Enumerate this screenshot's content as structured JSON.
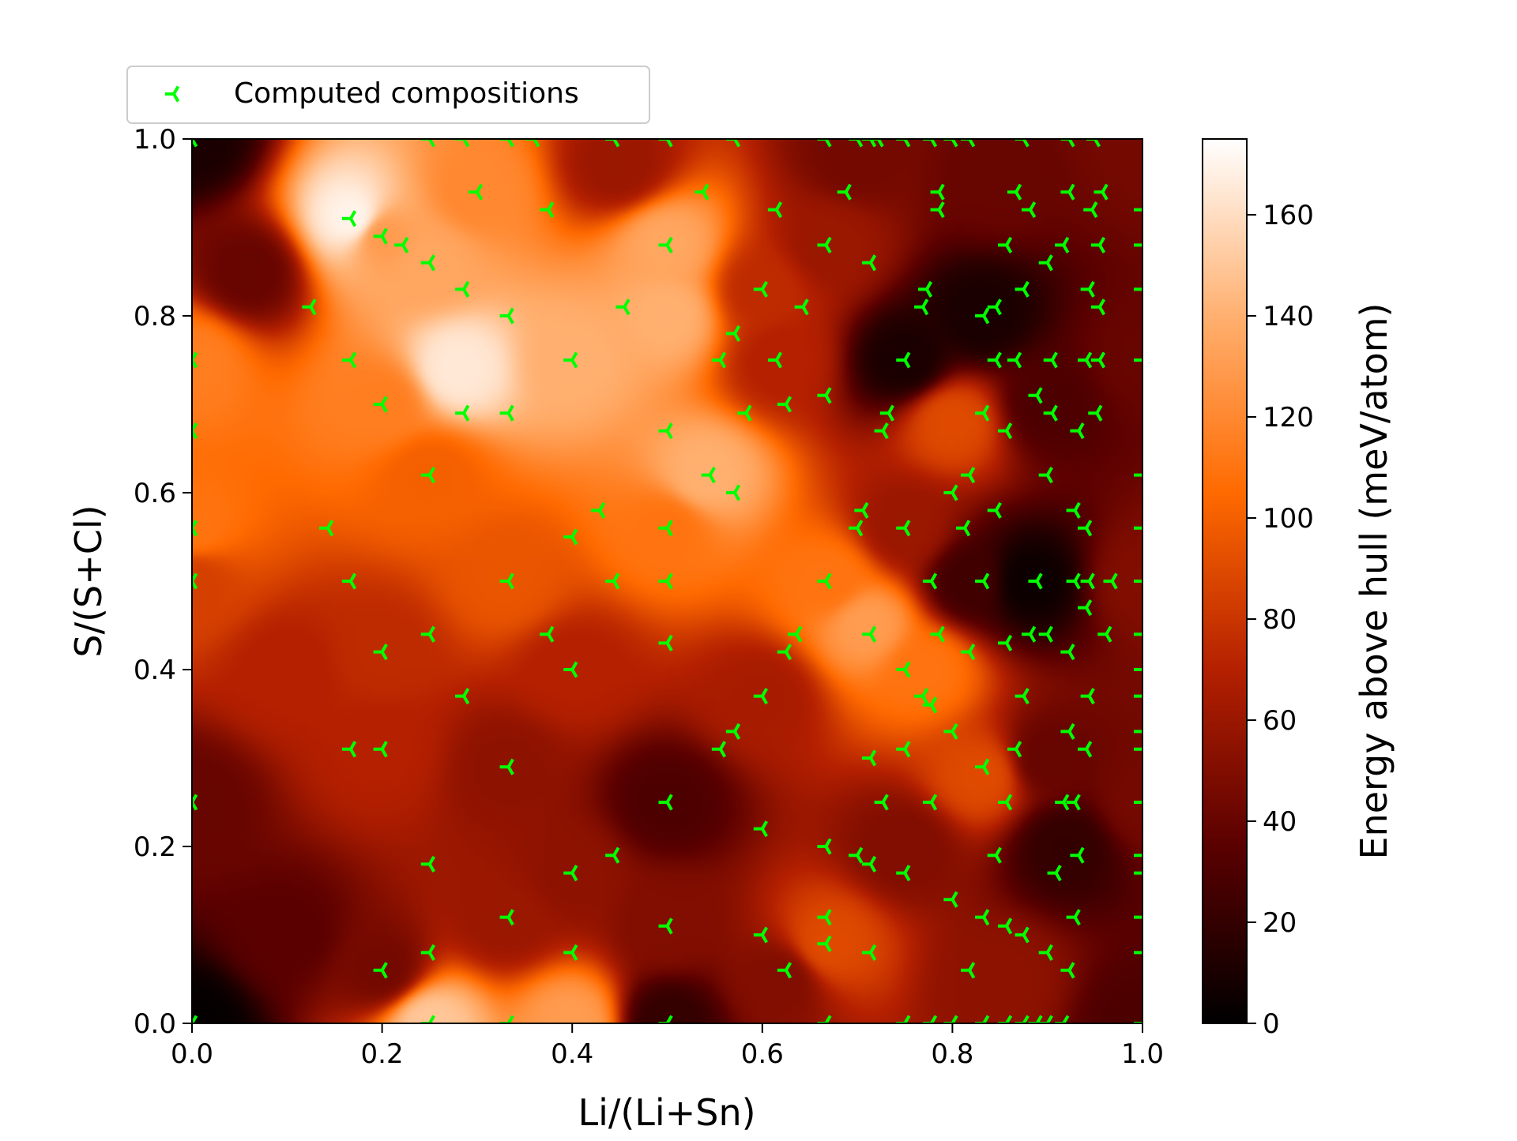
{
  "chart_data": {
    "type": "heatmap",
    "xlabel": "Li/(Li+Sn)",
    "ylabel": "S/(S+Cl)",
    "xlim": [
      0.0,
      1.0
    ],
    "ylim": [
      0.0,
      1.0
    ],
    "x_ticks": [
      "0.0",
      "0.2",
      "0.4",
      "0.6",
      "0.8",
      "1.0"
    ],
    "y_ticks": [
      "0.0",
      "0.2",
      "0.4",
      "0.6",
      "0.8",
      "1.0"
    ],
    "grid": false,
    "legend": {
      "placement": "top-left-above",
      "entries": [
        "Computed compositions"
      ]
    },
    "colorbar": {
      "label": "Energy above hull (meV/atom)",
      "range": [
        0,
        175
      ],
      "ticks": [
        "0",
        "20",
        "40",
        "60",
        "80",
        "100",
        "120",
        "140",
        "160"
      ],
      "colormap": "gist_heat",
      "colors": [
        "#000000",
        "#5a0000",
        "#b42000",
        "#ff6a00",
        "#ffb070",
        "#ffffff"
      ]
    },
    "marker_color": "#00ff00",
    "surface": [
      {
        "x": 0.0,
        "y": 0.0,
        "e": 2
      },
      {
        "x": 0.0,
        "y": 0.25,
        "e": 40
      },
      {
        "x": 0.0,
        "y": 0.5,
        "e": 85
      },
      {
        "x": 0.0,
        "y": 0.56,
        "e": 110
      },
      {
        "x": 0.0,
        "y": 0.75,
        "e": 115
      },
      {
        "x": 0.0,
        "y": 1.0,
        "e": 10
      },
      {
        "x": 0.06,
        "y": 0.85,
        "e": 40
      },
      {
        "x": 0.1,
        "y": 0.4,
        "e": 70
      },
      {
        "x": 0.1,
        "y": 0.1,
        "e": 35
      },
      {
        "x": 0.17,
        "y": 0.91,
        "e": 170
      },
      {
        "x": 0.2,
        "y": 0.89,
        "e": 130
      },
      {
        "x": 0.2,
        "y": 0.7,
        "e": 115
      },
      {
        "x": 0.2,
        "y": 0.42,
        "e": 75
      },
      {
        "x": 0.2,
        "y": 0.31,
        "e": 70
      },
      {
        "x": 0.2,
        "y": 0.06,
        "e": 45
      },
      {
        "x": 0.25,
        "y": 0.0,
        "e": 150
      },
      {
        "x": 0.25,
        "y": 0.62,
        "e": 100
      },
      {
        "x": 0.25,
        "y": 0.86,
        "e": 135
      },
      {
        "x": 0.28,
        "y": 0.74,
        "e": 165
      },
      {
        "x": 0.3,
        "y": 0.94,
        "e": 120
      },
      {
        "x": 0.33,
        "y": 0.5,
        "e": 95
      },
      {
        "x": 0.33,
        "y": 0.29,
        "e": 55
      },
      {
        "x": 0.33,
        "y": 0.12,
        "e": 60
      },
      {
        "x": 0.4,
        "y": 0.0,
        "e": 130
      },
      {
        "x": 0.4,
        "y": 0.75,
        "e": 140
      },
      {
        "x": 0.4,
        "y": 0.4,
        "e": 70
      },
      {
        "x": 0.4,
        "y": 0.17,
        "e": 55
      },
      {
        "x": 0.45,
        "y": 0.97,
        "e": 60
      },
      {
        "x": 0.5,
        "y": 0.88,
        "e": 135
      },
      {
        "x": 0.5,
        "y": 0.8,
        "e": 140
      },
      {
        "x": 0.5,
        "y": 0.56,
        "e": 110
      },
      {
        "x": 0.5,
        "y": 0.25,
        "e": 30
      },
      {
        "x": 0.5,
        "y": 0.11,
        "e": 50
      },
      {
        "x": 0.5,
        "y": 0.0,
        "e": 20
      },
      {
        "x": 0.54,
        "y": 0.62,
        "e": 140
      },
      {
        "x": 0.6,
        "y": 0.83,
        "e": 75
      },
      {
        "x": 0.6,
        "y": 0.37,
        "e": 65
      },
      {
        "x": 0.62,
        "y": 0.75,
        "e": 70
      },
      {
        "x": 0.62,
        "y": 0.05,
        "e": 50
      },
      {
        "x": 0.67,
        "y": 0.5,
        "e": 110
      },
      {
        "x": 0.67,
        "y": 0.09,
        "e": 90
      },
      {
        "x": 0.67,
        "y": 0.88,
        "e": 60
      },
      {
        "x": 0.71,
        "y": 0.45,
        "e": 130
      },
      {
        "x": 0.7,
        "y": 0.98,
        "e": 45
      },
      {
        "x": 0.75,
        "y": 0.75,
        "e": 10
      },
      {
        "x": 0.75,
        "y": 0.56,
        "e": 60
      },
      {
        "x": 0.75,
        "y": 0.2,
        "e": 50
      },
      {
        "x": 0.77,
        "y": 0.4,
        "e": 110
      },
      {
        "x": 0.8,
        "y": 0.68,
        "e": 90
      },
      {
        "x": 0.82,
        "y": 0.5,
        "e": 25
      },
      {
        "x": 0.83,
        "y": 0.8,
        "e": 10
      },
      {
        "x": 0.83,
        "y": 0.28,
        "e": 90
      },
      {
        "x": 0.85,
        "y": 0.05,
        "e": 55
      },
      {
        "x": 0.85,
        "y": 0.95,
        "e": 40
      },
      {
        "x": 0.88,
        "y": 0.5,
        "e": 5
      },
      {
        "x": 0.9,
        "y": 0.7,
        "e": 30
      },
      {
        "x": 0.9,
        "y": 0.3,
        "e": 40
      },
      {
        "x": 0.92,
        "y": 0.2,
        "e": 20
      },
      {
        "x": 1.0,
        "y": 0.0,
        "e": 30
      },
      {
        "x": 1.0,
        "y": 0.25,
        "e": 45
      },
      {
        "x": 1.0,
        "y": 0.5,
        "e": 50
      },
      {
        "x": 1.0,
        "y": 0.75,
        "e": 40
      },
      {
        "x": 1.0,
        "y": 1.0,
        "e": 45
      }
    ],
    "points": [
      [
        0.0,
        1.0
      ],
      [
        0.0,
        0.75
      ],
      [
        0.0,
        0.67
      ],
      [
        0.0,
        0.56
      ],
      [
        0.0,
        0.5
      ],
      [
        0.0,
        0.25
      ],
      [
        0.0,
        0.0
      ],
      [
        0.125,
        0.81
      ],
      [
        0.143,
        0.56
      ],
      [
        0.167,
        0.91
      ],
      [
        0.167,
        0.75
      ],
      [
        0.167,
        0.5
      ],
      [
        0.167,
        0.31
      ],
      [
        0.2,
        0.89
      ],
      [
        0.2,
        0.7
      ],
      [
        0.2,
        0.42
      ],
      [
        0.2,
        0.31
      ],
      [
        0.2,
        0.06
      ],
      [
        0.222,
        0.88
      ],
      [
        0.25,
        0.86
      ],
      [
        0.25,
        0.62
      ],
      [
        0.25,
        0.44
      ],
      [
        0.25,
        0.18
      ],
      [
        0.25,
        0.08
      ],
      [
        0.25,
        1.0
      ],
      [
        0.25,
        0.0
      ],
      [
        0.286,
        0.83
      ],
      [
        0.286,
        0.69
      ],
      [
        0.286,
        0.37
      ],
      [
        0.286,
        1.0
      ],
      [
        0.3,
        0.94
      ],
      [
        0.333,
        0.8
      ],
      [
        0.333,
        0.69
      ],
      [
        0.333,
        0.5
      ],
      [
        0.333,
        0.29
      ],
      [
        0.333,
        0.12
      ],
      [
        0.333,
        1.0
      ],
      [
        0.333,
        0.0
      ],
      [
        0.36,
        1.0
      ],
      [
        0.375,
        0.92
      ],
      [
        0.375,
        0.44
      ],
      [
        0.4,
        0.75
      ],
      [
        0.4,
        0.55
      ],
      [
        0.4,
        0.4
      ],
      [
        0.4,
        0.17
      ],
      [
        0.4,
        0.08
      ],
      [
        0.429,
        0.58
      ],
      [
        0.444,
        0.5
      ],
      [
        0.444,
        0.19
      ],
      [
        0.444,
        1.0
      ],
      [
        0.455,
        0.81
      ],
      [
        0.5,
        0.88
      ],
      [
        0.5,
        0.67
      ],
      [
        0.5,
        0.56
      ],
      [
        0.5,
        0.5
      ],
      [
        0.5,
        0.43
      ],
      [
        0.5,
        0.25
      ],
      [
        0.5,
        0.11
      ],
      [
        0.5,
        1.0
      ],
      [
        0.5,
        0.0
      ],
      [
        0.538,
        0.94
      ],
      [
        0.545,
        0.62
      ],
      [
        0.556,
        0.75
      ],
      [
        0.556,
        0.31
      ],
      [
        0.571,
        0.78
      ],
      [
        0.571,
        0.6
      ],
      [
        0.571,
        0.33
      ],
      [
        0.571,
        1.0
      ],
      [
        0.583,
        0.69
      ],
      [
        0.6,
        0.83
      ],
      [
        0.6,
        0.37
      ],
      [
        0.6,
        0.22
      ],
      [
        0.6,
        0.1
      ],
      [
        0.615,
        0.92
      ],
      [
        0.615,
        0.75
      ],
      [
        0.625,
        0.7
      ],
      [
        0.625,
        0.42
      ],
      [
        0.625,
        0.06
      ],
      [
        0.636,
        0.44
      ],
      [
        0.643,
        0.81
      ],
      [
        0.667,
        0.88
      ],
      [
        0.667,
        0.71
      ],
      [
        0.667,
        0.5
      ],
      [
        0.667,
        0.2
      ],
      [
        0.667,
        0.12
      ],
      [
        0.667,
        0.09
      ],
      [
        0.667,
        1.0
      ],
      [
        0.667,
        0.0
      ],
      [
        0.688,
        0.94
      ],
      [
        0.7,
        0.56
      ],
      [
        0.7,
        0.19
      ],
      [
        0.7,
        1.0
      ],
      [
        0.706,
        0.58
      ],
      [
        0.714,
        0.86
      ],
      [
        0.714,
        0.44
      ],
      [
        0.714,
        0.3
      ],
      [
        0.714,
        0.18
      ],
      [
        0.714,
        0.08
      ],
      [
        0.714,
        1.0
      ],
      [
        0.722,
        1.0
      ],
      [
        0.727,
        0.67
      ],
      [
        0.727,
        0.25
      ],
      [
        0.733,
        0.69
      ],
      [
        0.75,
        0.75
      ],
      [
        0.75,
        0.56
      ],
      [
        0.75,
        0.4
      ],
      [
        0.75,
        0.31
      ],
      [
        0.75,
        0.17
      ],
      [
        0.75,
        1.0
      ],
      [
        0.75,
        0.0
      ],
      [
        0.769,
        0.81
      ],
      [
        0.769,
        0.37
      ],
      [
        0.773,
        0.83
      ],
      [
        0.778,
        0.36
      ],
      [
        0.778,
        0.5
      ],
      [
        0.778,
        0.25
      ],
      [
        0.778,
        1.0
      ],
      [
        0.778,
        0.0
      ],
      [
        0.786,
        0.94
      ],
      [
        0.786,
        0.92
      ],
      [
        0.786,
        0.44
      ],
      [
        0.8,
        0.6
      ],
      [
        0.8,
        0.33
      ],
      [
        0.8,
        0.14
      ],
      [
        0.8,
        1.0
      ],
      [
        0.8,
        0.0
      ],
      [
        0.813,
        0.56
      ],
      [
        0.818,
        0.62
      ],
      [
        0.818,
        0.42
      ],
      [
        0.818,
        0.06
      ],
      [
        0.818,
        1.0
      ],
      [
        0.833,
        0.8
      ],
      [
        0.833,
        0.69
      ],
      [
        0.833,
        0.5
      ],
      [
        0.833,
        0.29
      ],
      [
        0.833,
        0.12
      ],
      [
        0.833,
        0.0
      ],
      [
        0.846,
        0.75
      ],
      [
        0.846,
        0.58
      ],
      [
        0.846,
        0.19
      ],
      [
        0.846,
        0.81
      ],
      [
        0.857,
        0.88
      ],
      [
        0.857,
        0.67
      ],
      [
        0.857,
        0.43
      ],
      [
        0.857,
        0.25
      ],
      [
        0.857,
        0.11
      ],
      [
        0.857,
        0.0
      ],
      [
        0.867,
        0.75
      ],
      [
        0.867,
        0.31
      ],
      [
        0.875,
        0.83
      ],
      [
        0.875,
        0.37
      ],
      [
        0.875,
        0.1
      ],
      [
        0.875,
        1.0
      ],
      [
        0.875,
        0.0
      ],
      [
        0.882,
        0.44
      ],
      [
        0.889,
        0.71
      ],
      [
        0.889,
        0.5
      ],
      [
        0.889,
        0.0
      ],
      [
        0.882,
        0.92
      ],
      [
        0.867,
        0.94
      ],
      [
        0.9,
        0.86
      ],
      [
        0.9,
        0.62
      ],
      [
        0.9,
        0.44
      ],
      [
        0.9,
        0.08
      ],
      [
        0.9,
        0.0
      ],
      [
        0.905,
        0.75
      ],
      [
        0.905,
        0.69
      ],
      [
        0.909,
        0.17
      ],
      [
        0.917,
        0.88
      ],
      [
        0.917,
        0.25
      ],
      [
        0.917,
        0.0
      ],
      [
        0.923,
        0.94
      ],
      [
        0.923,
        0.42
      ],
      [
        0.923,
        0.33
      ],
      [
        0.923,
        0.06
      ],
      [
        0.923,
        1.0
      ],
      [
        0.929,
        0.58
      ],
      [
        0.929,
        0.5
      ],
      [
        0.929,
        0.25
      ],
      [
        0.929,
        0.12
      ],
      [
        0.933,
        0.19
      ],
      [
        0.933,
        0.67
      ],
      [
        0.941,
        0.75
      ],
      [
        0.941,
        0.47
      ],
      [
        0.941,
        0.31
      ],
      [
        0.941,
        0.56
      ],
      [
        0.944,
        0.83
      ],
      [
        0.944,
        0.5
      ],
      [
        0.944,
        0.37
      ],
      [
        0.947,
        0.92
      ],
      [
        0.95,
        1.0
      ],
      [
        0.952,
        0.69
      ],
      [
        0.955,
        0.81
      ],
      [
        0.955,
        0.75
      ],
      [
        0.955,
        0.88
      ],
      [
        0.958,
        0.94
      ],
      [
        0.962,
        0.44
      ],
      [
        0.968,
        0.5
      ],
      [
        1.0,
        0.92
      ],
      [
        1.0,
        0.88
      ],
      [
        1.0,
        0.83
      ],
      [
        1.0,
        0.75
      ],
      [
        1.0,
        0.62
      ],
      [
        1.0,
        0.56
      ],
      [
        1.0,
        0.5
      ],
      [
        1.0,
        0.44
      ],
      [
        1.0,
        0.4
      ],
      [
        1.0,
        0.37
      ],
      [
        1.0,
        0.33
      ],
      [
        1.0,
        0.31
      ],
      [
        1.0,
        0.25
      ],
      [
        1.0,
        0.19
      ],
      [
        1.0,
        0.17
      ],
      [
        1.0,
        0.12
      ],
      [
        1.0,
        0.08
      ],
      [
        1.0,
        0.0
      ]
    ]
  }
}
